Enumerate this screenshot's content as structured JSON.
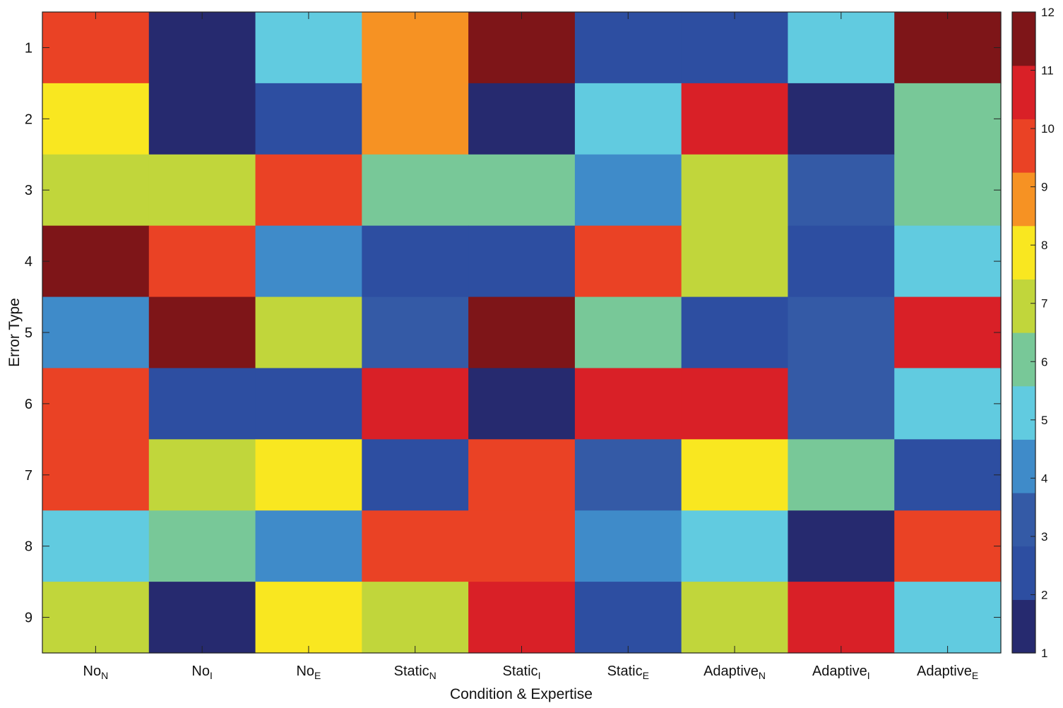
{
  "chart_data": {
    "type": "heatmap",
    "title": "",
    "xlabel": "Condition & Expertise",
    "ylabel": "Error Type",
    "columns": [
      {
        "base": "No",
        "sub": "N"
      },
      {
        "base": "No",
        "sub": "I"
      },
      {
        "base": "No",
        "sub": "E"
      },
      {
        "base": "Static",
        "sub": "N"
      },
      {
        "base": "Static",
        "sub": "I"
      },
      {
        "base": "Static",
        "sub": "E"
      },
      {
        "base": "Adaptive",
        "sub": "N"
      },
      {
        "base": "Adaptive",
        "sub": "I"
      },
      {
        "base": "Adaptive",
        "sub": "E"
      }
    ],
    "rows": [
      "1",
      "2",
      "3",
      "4",
      "5",
      "6",
      "7",
      "8",
      "9"
    ],
    "values": [
      [
        10,
        1,
        5,
        9,
        12,
        2,
        2,
        5,
        12
      ],
      [
        8,
        1,
        2,
        9,
        1,
        5,
        11,
        1,
        6
      ],
      [
        7,
        7,
        10,
        6,
        6,
        4,
        7,
        3,
        6
      ],
      [
        12,
        10,
        4,
        2,
        2,
        10,
        7,
        2,
        5
      ],
      [
        4,
        12,
        7,
        3,
        12,
        6,
        2,
        3,
        11
      ],
      [
        10,
        2,
        2,
        11,
        1,
        11,
        11,
        3,
        5
      ],
      [
        10,
        7,
        8,
        2,
        10,
        3,
        8,
        6,
        2
      ],
      [
        5,
        6,
        4,
        10,
        10,
        4,
        5,
        1,
        10
      ],
      [
        7,
        1,
        8,
        7,
        11,
        2,
        7,
        11,
        5
      ]
    ],
    "colorbar": {
      "range": [
        1,
        12
      ],
      "ticks": [
        1,
        2,
        3,
        4,
        5,
        6,
        7,
        8,
        9,
        10,
        11,
        12
      ],
      "colors": [
        "#262a6f",
        "#2d4ea1",
        "#345aa6",
        "#3f8bc9",
        "#61cbe0",
        "#78c898",
        "#c1d63b",
        "#f9e720",
        "#f69223",
        "#ea4225",
        "#d92027",
        "#7e1518"
      ]
    }
  }
}
